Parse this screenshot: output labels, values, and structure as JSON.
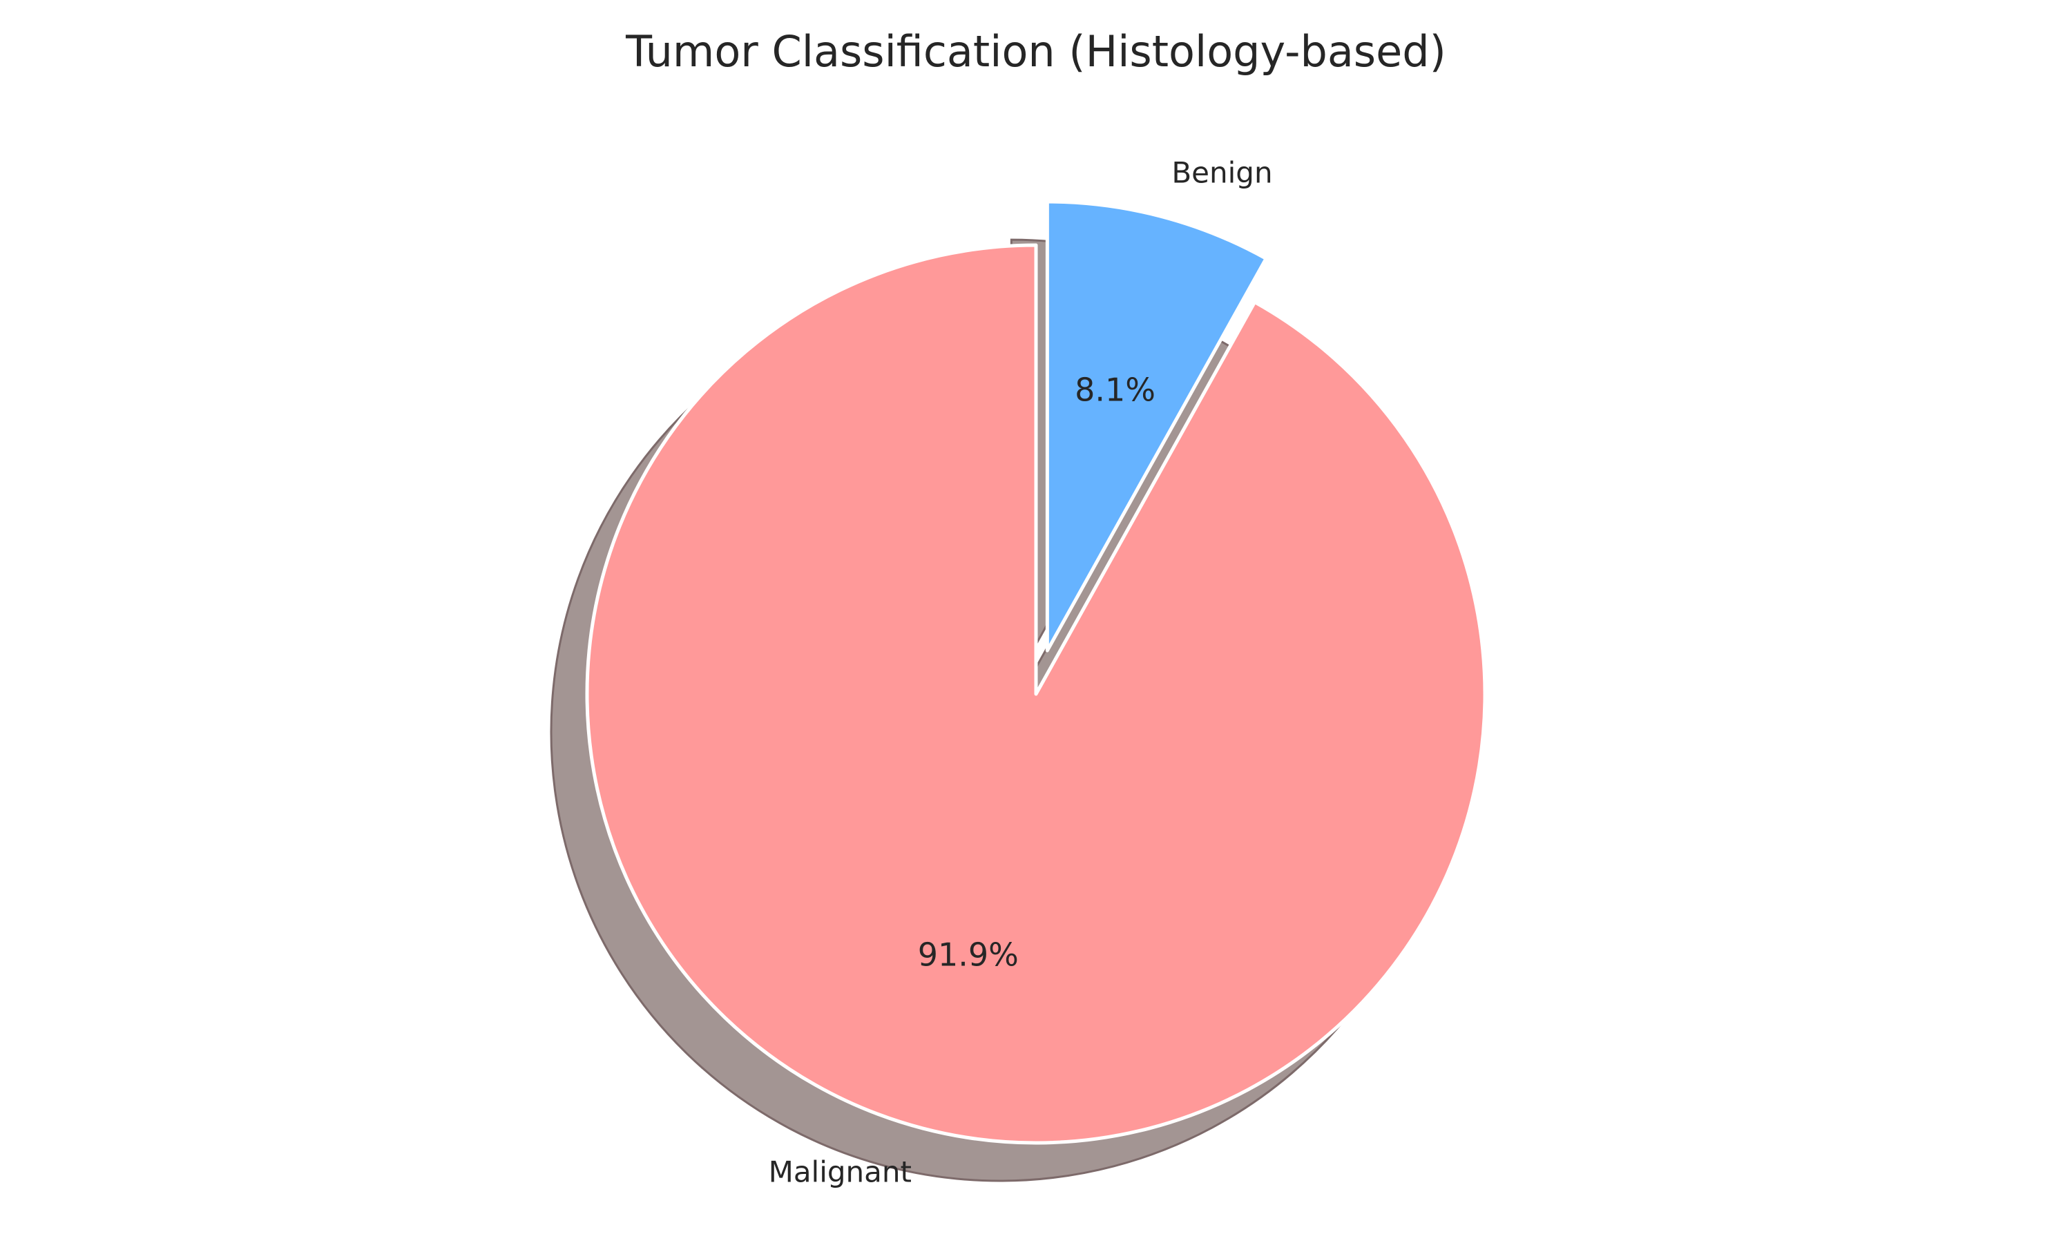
{
  "chart_data": {
    "type": "pie",
    "title": "Tumor Classification (Histology-based)",
    "categories": [
      "Malignant",
      "Benign"
    ],
    "values": [
      91.9,
      8.1
    ],
    "percent_labels": [
      "91.9%",
      "8.1%"
    ],
    "colors": [
      "#ff9999",
      "#66b3ff"
    ],
    "exploded": [
      false,
      true
    ],
    "shadow": true,
    "start_angle_deg": 90,
    "direction": "counterclockwise"
  }
}
